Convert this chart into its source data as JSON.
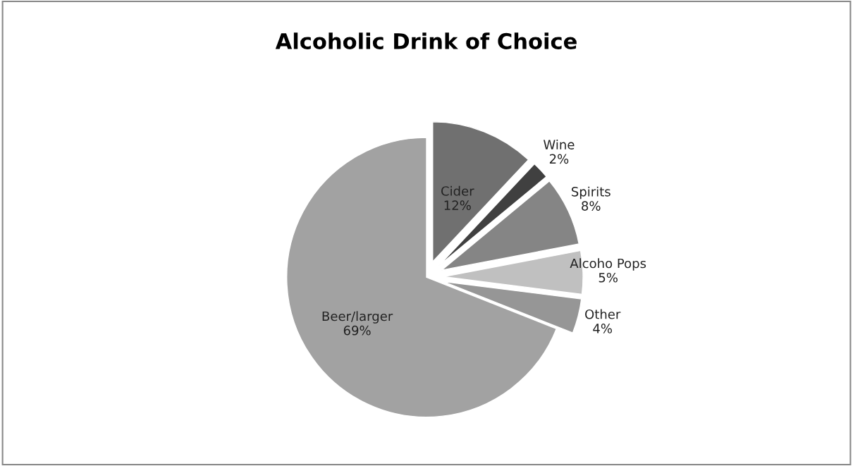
{
  "chart_data": {
    "type": "pie",
    "title": "Alcoholic Drink of Choice",
    "categories": [
      "Cider",
      "Wine",
      "Spirits",
      "Alcoho Pops",
      "Other",
      "Beer/larger"
    ],
    "values": [
      12,
      2,
      8,
      5,
      4,
      69
    ],
    "colors": [
      "#707070",
      "#404040",
      "#858585",
      "#c0c0c0",
      "#969696",
      "#a2a2a2"
    ],
    "value_labels": [
      "12%",
      "2%",
      "8%",
      "5%",
      "4%",
      "69%"
    ],
    "legend": false
  }
}
